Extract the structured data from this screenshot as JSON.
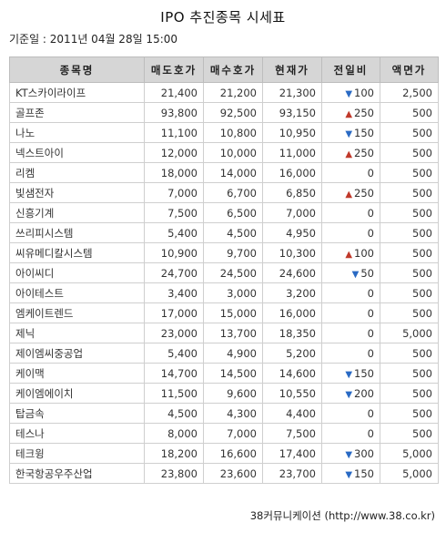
{
  "title": "IPO 추진종목 시세표",
  "base_date": "기준일 : 2011년 04월 28일 15:00",
  "columns": [
    "종목명",
    "매도호가",
    "매수호가",
    "현재가",
    "전일비",
    "액면가"
  ],
  "rows": [
    {
      "name": "KT스카이라이프",
      "ask": "21,400",
      "bid": "21,200",
      "price": "21,300",
      "dir": "down",
      "change": "100",
      "par": "2,500"
    },
    {
      "name": "골프존",
      "ask": "93,800",
      "bid": "92,500",
      "price": "93,150",
      "dir": "up",
      "change": "250",
      "par": "500"
    },
    {
      "name": "나노",
      "ask": "11,100",
      "bid": "10,800",
      "price": "10,950",
      "dir": "down",
      "change": "150",
      "par": "500"
    },
    {
      "name": "넥스트아이",
      "ask": "12,000",
      "bid": "10,000",
      "price": "11,000",
      "dir": "up",
      "change": "250",
      "par": "500"
    },
    {
      "name": "리켐",
      "ask": "18,000",
      "bid": "14,000",
      "price": "16,000",
      "dir": "none",
      "change": "0",
      "par": "500"
    },
    {
      "name": "빛샘전자",
      "ask": "7,000",
      "bid": "6,700",
      "price": "6,850",
      "dir": "up",
      "change": "250",
      "par": "500"
    },
    {
      "name": "신흥기계",
      "ask": "7,500",
      "bid": "6,500",
      "price": "7,000",
      "dir": "none",
      "change": "0",
      "par": "500"
    },
    {
      "name": "쓰리피시스템",
      "ask": "5,400",
      "bid": "4,500",
      "price": "4,950",
      "dir": "none",
      "change": "0",
      "par": "500"
    },
    {
      "name": "씨유메디칼시스템",
      "ask": "10,900",
      "bid": "9,700",
      "price": "10,300",
      "dir": "up",
      "change": "100",
      "par": "500"
    },
    {
      "name": "아이씨디",
      "ask": "24,700",
      "bid": "24,500",
      "price": "24,600",
      "dir": "down",
      "change": "50",
      "par": "500"
    },
    {
      "name": "아이테스트",
      "ask": "3,400",
      "bid": "3,000",
      "price": "3,200",
      "dir": "none",
      "change": "0",
      "par": "500"
    },
    {
      "name": "엠케이트렌드",
      "ask": "17,000",
      "bid": "15,000",
      "price": "16,000",
      "dir": "none",
      "change": "0",
      "par": "500"
    },
    {
      "name": "제닉",
      "ask": "23,000",
      "bid": "13,700",
      "price": "18,350",
      "dir": "none",
      "change": "0",
      "par": "5,000"
    },
    {
      "name": "제이엠씨중공업",
      "ask": "5,400",
      "bid": "4,900",
      "price": "5,200",
      "dir": "none",
      "change": "0",
      "par": "500"
    },
    {
      "name": "케이맥",
      "ask": "14,700",
      "bid": "14,500",
      "price": "14,600",
      "dir": "down",
      "change": "150",
      "par": "500"
    },
    {
      "name": "케이엠에이치",
      "ask": "11,500",
      "bid": "9,600",
      "price": "10,550",
      "dir": "down",
      "change": "200",
      "par": "500"
    },
    {
      "name": "탑금속",
      "ask": "4,500",
      "bid": "4,300",
      "price": "4,400",
      "dir": "none",
      "change": "0",
      "par": "500"
    },
    {
      "name": "테스나",
      "ask": "8,000",
      "bid": "7,000",
      "price": "7,500",
      "dir": "none",
      "change": "0",
      "par": "500"
    },
    {
      "name": "테크윙",
      "ask": "18,200",
      "bid": "16,600",
      "price": "17,400",
      "dir": "down",
      "change": "300",
      "par": "5,000"
    },
    {
      "name": "한국항공우주산업",
      "ask": "23,800",
      "bid": "23,600",
      "price": "23,700",
      "dir": "down",
      "change": "150",
      "par": "5,000"
    }
  ],
  "symbols": {
    "up": "▲",
    "down": "▼"
  },
  "colors": {
    "up": "#c0392b",
    "down": "#2a6ac4",
    "header_bg": "#d6d6d6"
  },
  "footer": "38커뮤니케이션 (http://www.38.co.kr)"
}
